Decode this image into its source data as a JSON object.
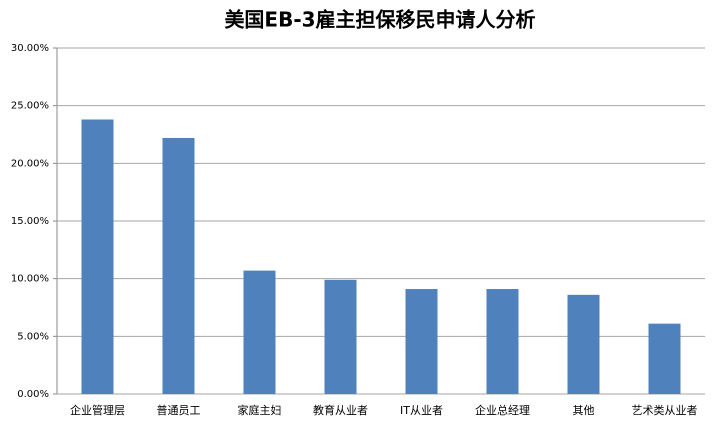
{
  "chart_data": {
    "type": "bar",
    "title": "美国EB-3雇主担保移民申请人分析",
    "categories": [
      "企业管理层",
      "普通员工",
      "家庭主妇",
      "教育从业者",
      "IT从业者",
      "企业总经理",
      "其他",
      "艺术类从业者"
    ],
    "values": [
      23.8,
      22.2,
      10.7,
      9.9,
      9.1,
      9.1,
      8.6,
      6.1
    ],
    "color": "#4f81bd",
    "ylim": [
      0,
      30
    ],
    "yticks": [
      {
        "value": 0,
        "label": "0.00%"
      },
      {
        "value": 5,
        "label": "5.00%"
      },
      {
        "value": 10,
        "label": "10.00%"
      },
      {
        "value": 15,
        "label": "15.00%"
      },
      {
        "value": 20,
        "label": "20.00%"
      },
      {
        "value": 25,
        "label": "25.00%"
      },
      {
        "value": 30,
        "label": "30.00%"
      }
    ],
    "grid": true
  }
}
